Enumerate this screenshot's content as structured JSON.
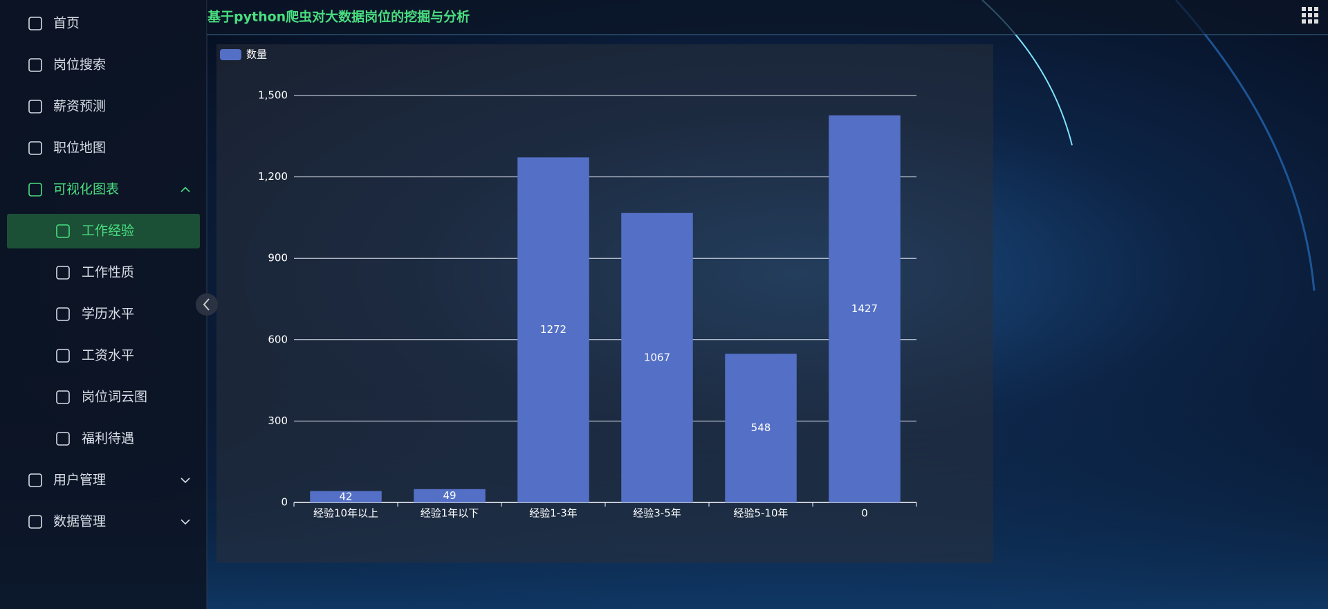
{
  "header": {
    "title": "基于python爬虫对大数据岗位的挖掘与分析"
  },
  "sidebar": {
    "items": [
      "首页",
      "岗位搜索",
      "薪资预测",
      "职位地图",
      "可视化图表",
      "工作经验",
      "工作性质",
      "学历水平",
      "工资水平",
      "岗位词云图",
      "福利待遇",
      "用户管理",
      "数据管理"
    ]
  },
  "chart_data": {
    "type": "bar",
    "categories": [
      "经验10年以上",
      "经验1年以下",
      "经验1-3年",
      "经验3-5年",
      "经验5-10年",
      "0"
    ],
    "series": [
      {
        "name": "数量",
        "color": "#5470c6",
        "values": [
          42,
          49,
          1272,
          1067,
          548,
          1427
        ]
      }
    ],
    "ylim": [
      0,
      1500
    ],
    "yticks": [
      0,
      300,
      600,
      900,
      {
        "value": 1200,
        "label": "1,200"
      },
      {
        "value": 1500,
        "label": "1,500"
      }
    ],
    "grid": true,
    "legend": "top-left"
  }
}
